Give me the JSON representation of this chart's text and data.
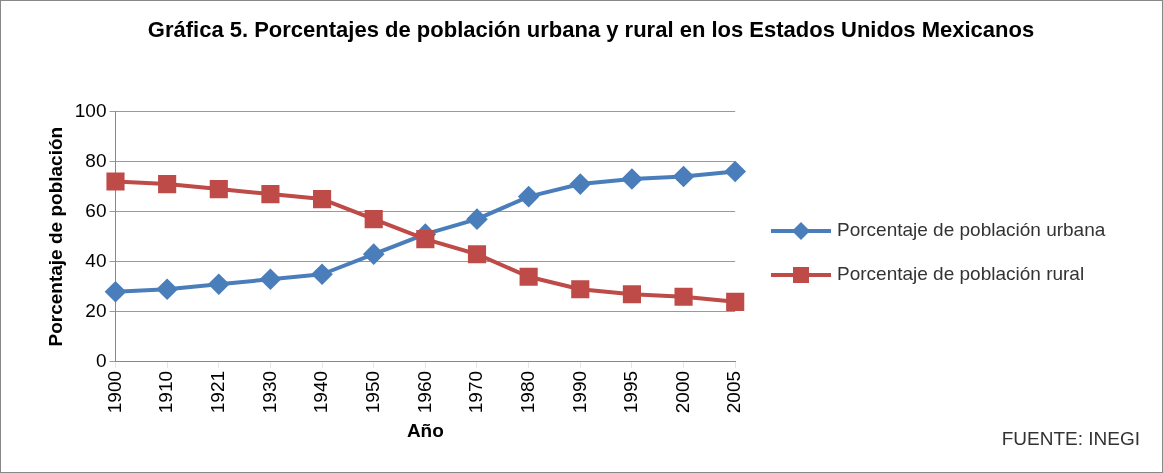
{
  "chart_data": {
    "type": "line",
    "title": "Gráfica 5. Porcentajes de población urbana y rural en los Estados Unidos Mexicanos",
    "xlabel": "Año",
    "ylabel": "Porcentaje de población",
    "categories": [
      "1900",
      "1910",
      "1921",
      "1930",
      "1940",
      "1950",
      "1960",
      "1970",
      "1980",
      "1990",
      "1995",
      "2000",
      "2005"
    ],
    "series": [
      {
        "name": "Porcentaje de población urbana",
        "color": "#4a7ebb",
        "marker": "diamond",
        "values": [
          28,
          29,
          31,
          33,
          35,
          43,
          51,
          57,
          66,
          71,
          73,
          74,
          76
        ]
      },
      {
        "name": "Porcentaje de población rural",
        "color": "#be4b48",
        "marker": "square",
        "values": [
          72,
          71,
          69,
          67,
          65,
          57,
          49,
          43,
          34,
          29,
          27,
          26,
          24
        ]
      }
    ],
    "ylim": [
      0,
      100
    ],
    "yticks": [
      0,
      20,
      40,
      60,
      80,
      100
    ],
    "grid": "y",
    "legend": "right",
    "annotations": [
      "FUENTE: INEGI"
    ]
  }
}
